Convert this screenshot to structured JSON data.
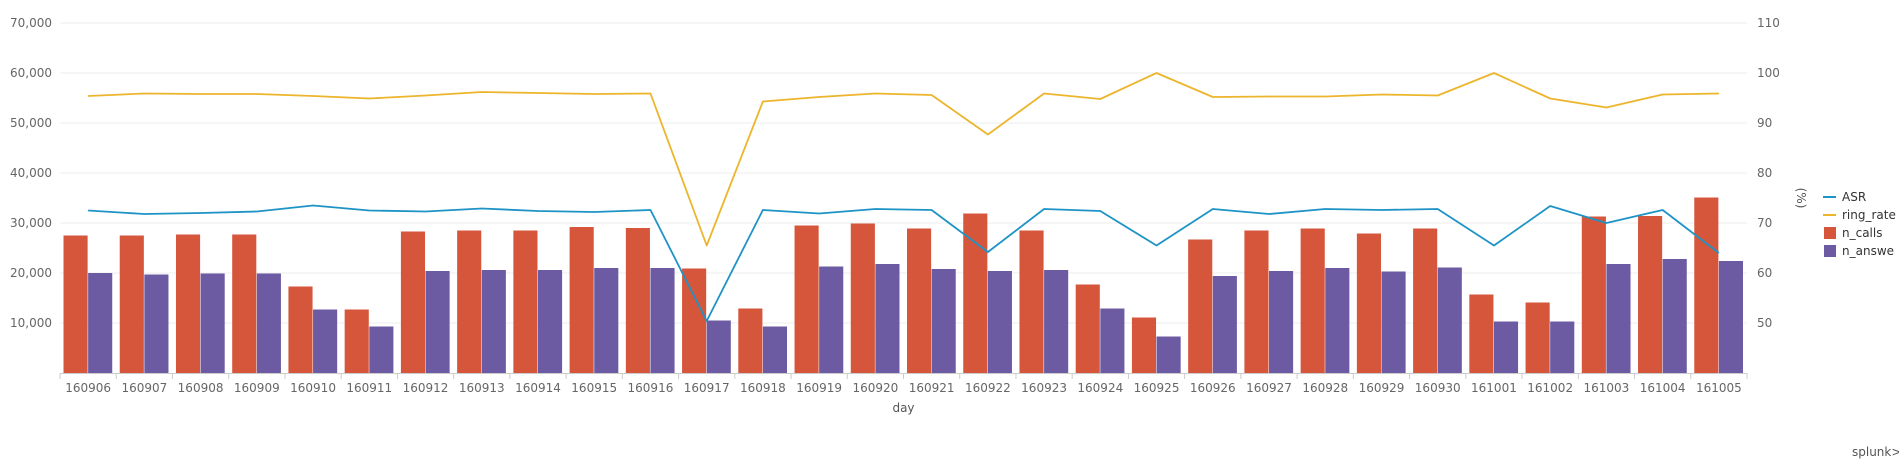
{
  "chart_data": {
    "type": "bar",
    "xlabel": "day",
    "y2label": "(%)",
    "ylim": [
      0,
      70000
    ],
    "y2lim": [
      40,
      110
    ],
    "yticks": [
      "10,000",
      "20,000",
      "30,000",
      "40,000",
      "50,000",
      "60,000",
      "70,000"
    ],
    "y2ticks": [
      "50",
      "60",
      "70",
      "80",
      "90",
      "100",
      "110"
    ],
    "grid": true,
    "legend_position": "right",
    "categories": [
      "160906",
      "160907",
      "160908",
      "160909",
      "160910",
      "160911",
      "160912",
      "160913",
      "160914",
      "160915",
      "160916",
      "160917",
      "160918",
      "160919",
      "160920",
      "160921",
      "160922",
      "160923",
      "160924",
      "160925",
      "160926",
      "160927",
      "160928",
      "160929",
      "160930",
      "161001",
      "161002",
      "161003",
      "161004",
      "161005"
    ],
    "series": [
      {
        "name": "n_calls",
        "kind": "bar",
        "axis": "left",
        "color": "#d6563c",
        "values": [
          27500,
          27500,
          27700,
          27700,
          17300,
          12700,
          28300,
          28500,
          28500,
          29200,
          29000,
          20900,
          12900,
          29500,
          29900,
          28900,
          31900,
          28500,
          17700,
          11100,
          26700,
          28500,
          28900,
          27900,
          28900,
          15700,
          14100,
          31300,
          31400,
          35100
        ]
      },
      {
        "name": "n_answered",
        "kind": "bar",
        "axis": "left",
        "color": "#6c5ba3",
        "values": [
          20000,
          19700,
          19900,
          19900,
          12700,
          9300,
          20400,
          20600,
          20600,
          21000,
          21000,
          10500,
          9300,
          21300,
          21800,
          20800,
          20400,
          20600,
          12900,
          7300,
          19400,
          20400,
          21000,
          20300,
          21100,
          10300,
          10300,
          21800,
          22800,
          22400
        ]
      },
      {
        "name": "ASR",
        "kind": "line",
        "axis": "right",
        "color": "#1e93c6",
        "values": [
          72.5,
          71.8,
          72,
          72.3,
          73.5,
          72.5,
          72.3,
          72.9,
          72.4,
          72.2,
          72.6,
          50.4,
          72.6,
          71.9,
          72.8,
          72.6,
          64.2,
          72.8,
          72.4,
          65.5,
          72.8,
          71.8,
          72.8,
          72.6,
          72.8,
          65.5,
          73.4,
          70,
          72.6,
          64
        ]
      },
      {
        "name": "ring_rate",
        "kind": "line",
        "axis": "right",
        "color": "#ecb52c",
        "values": [
          95.4,
          95.9,
          95.8,
          95.8,
          95.4,
          94.9,
          95.5,
          96.2,
          96,
          95.8,
          95.9,
          65.5,
          94.3,
          95.2,
          95.9,
          95.6,
          87.7,
          95.9,
          94.8,
          100,
          95.2,
          95.3,
          95.3,
          95.7,
          95.5,
          100,
          94.9,
          93.1,
          95.7,
          95.9
        ]
      }
    ]
  },
  "legend": {
    "items": [
      {
        "label": "ASR",
        "kind": "line",
        "color": "#1e93c6"
      },
      {
        "label": "ring_rate",
        "kind": "line",
        "color": "#ecb52c"
      },
      {
        "label": "n_calls",
        "kind": "bar",
        "color": "#d6563c"
      },
      {
        "label": "n_answe",
        "kind": "bar",
        "color": "#6c5ba3"
      }
    ]
  },
  "brand": {
    "label": "splunk>"
  }
}
